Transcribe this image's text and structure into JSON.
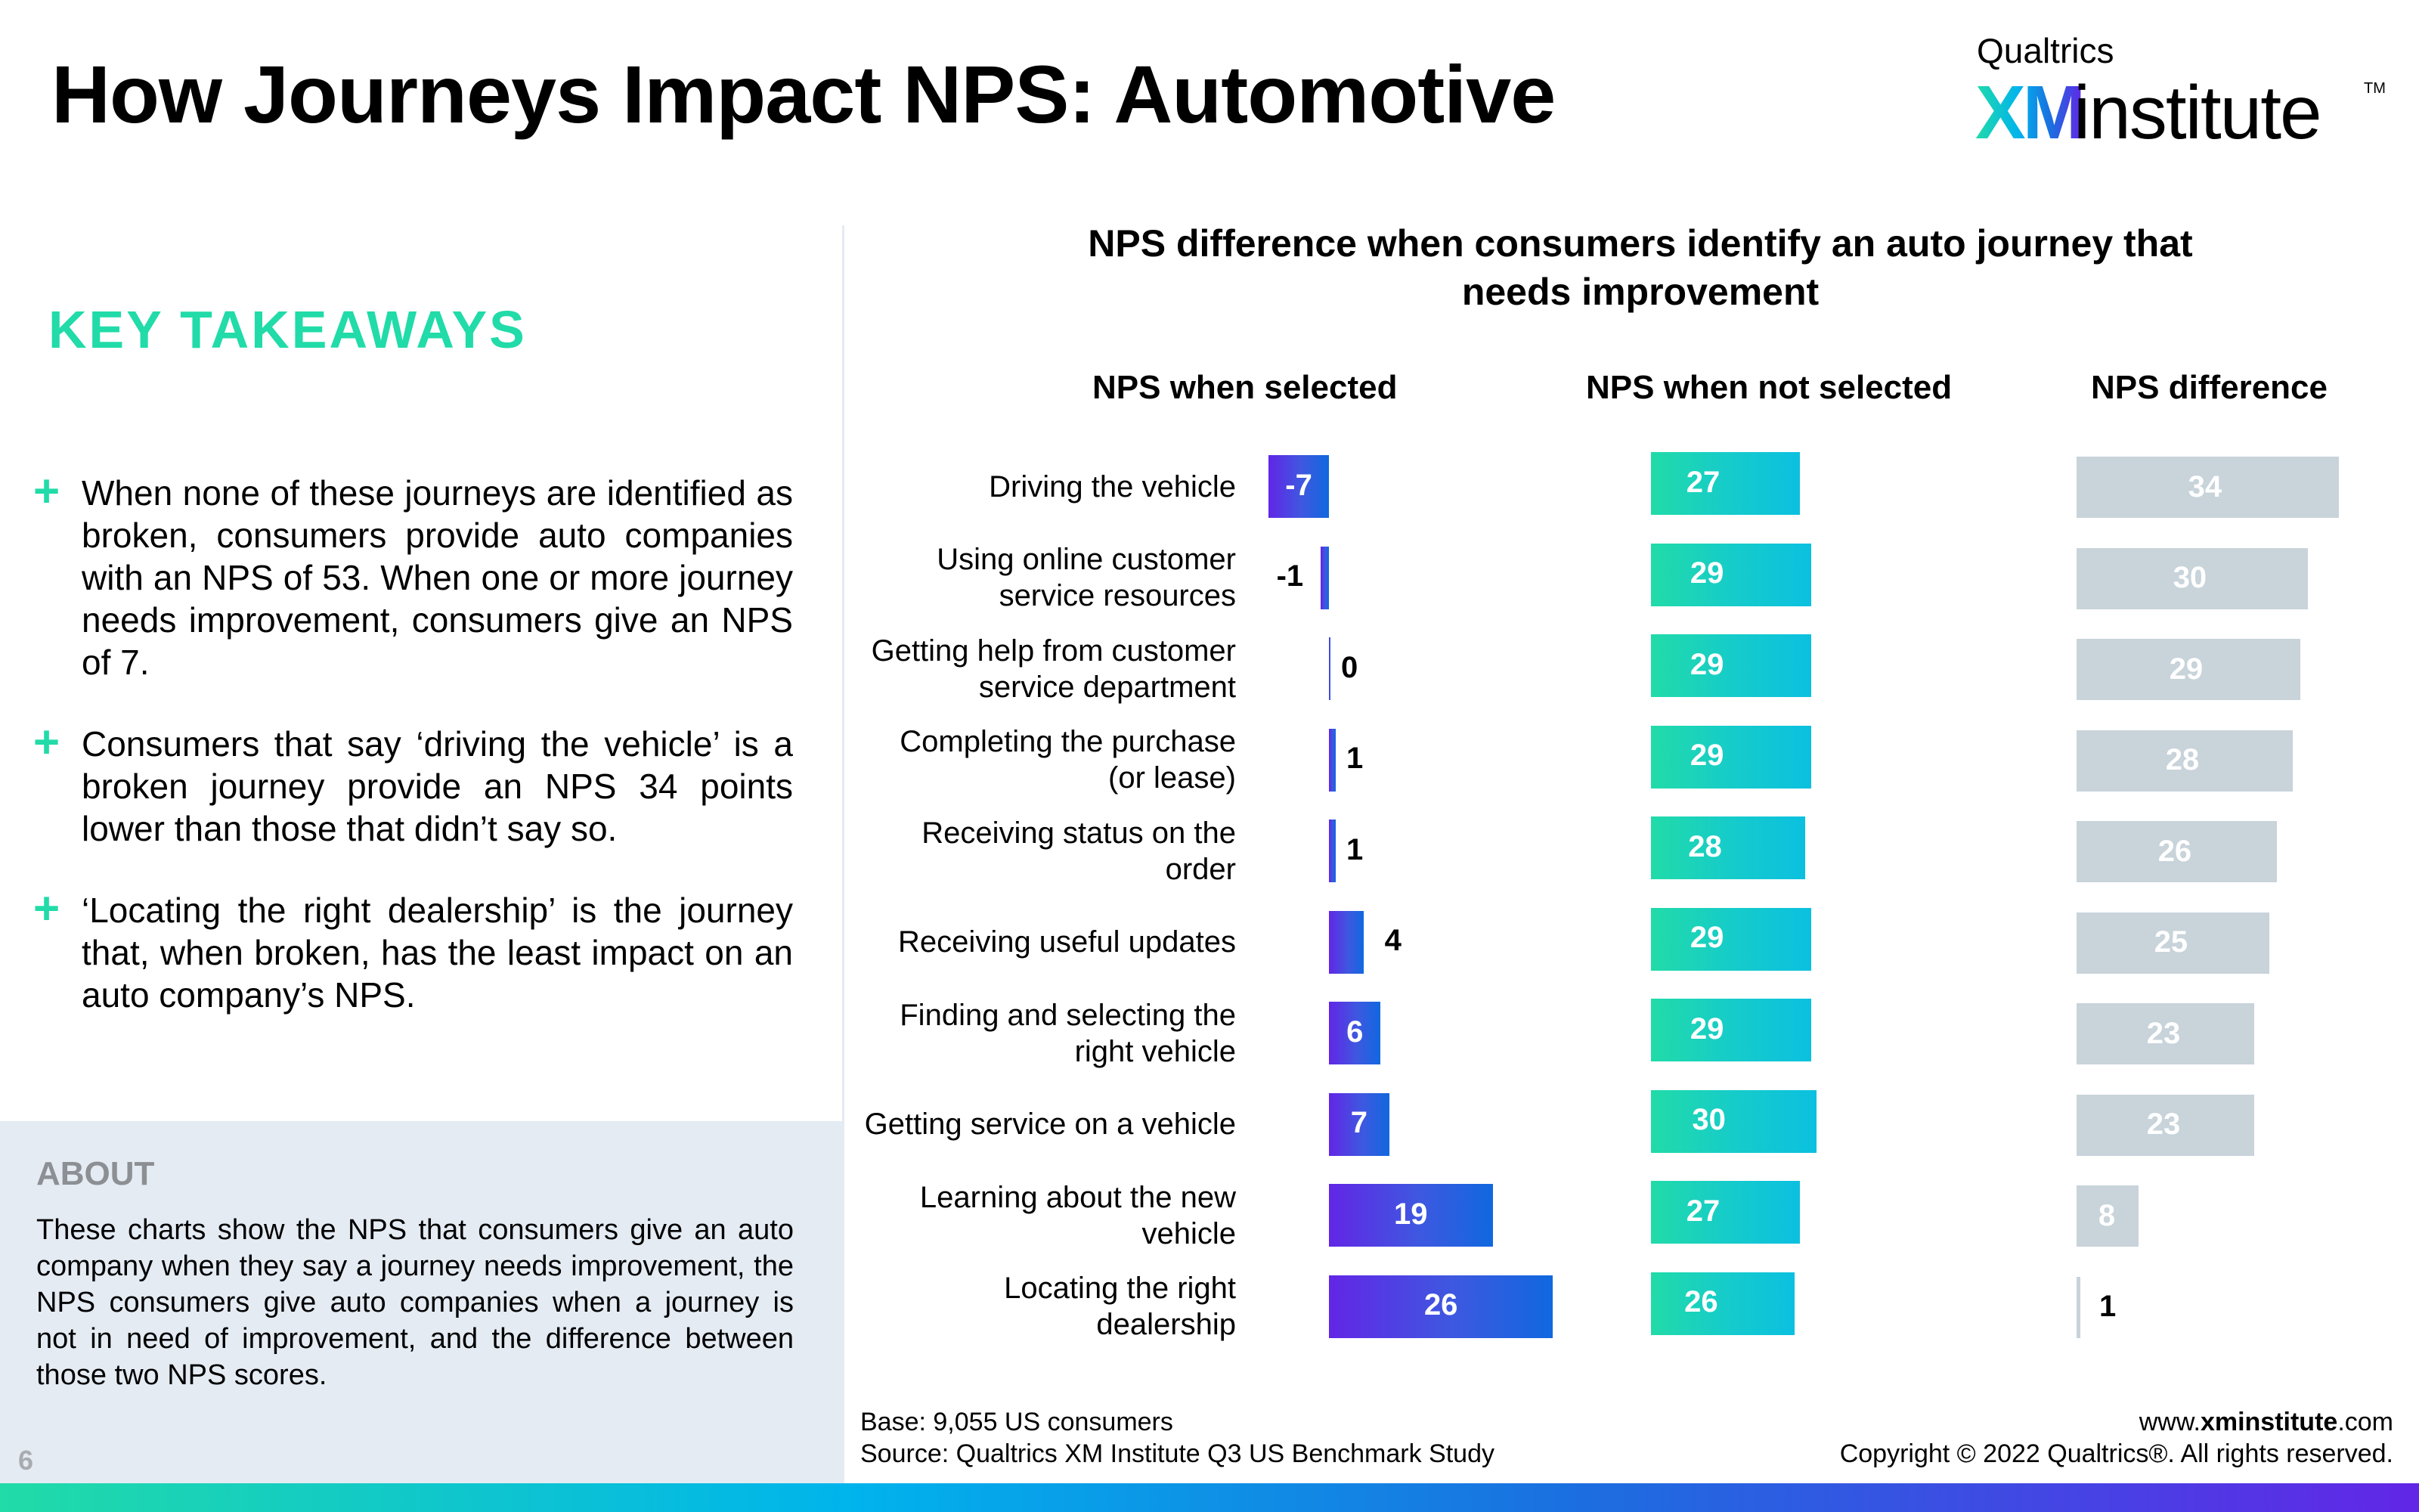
{
  "header": {
    "title": "How Journeys Impact NPS: Automotive",
    "logo": {
      "top": "Qualtrics",
      "xm": "XM",
      "word": "institute",
      "tm": "TM"
    }
  },
  "takeaways": {
    "title": "KEY TAKEAWAYS",
    "bullet_icon": "plus-icon",
    "items": [
      "When none of these journeys are identified as broken, consumers provide auto companies with an NPS of 53. When one or more journey needs improvement, consumers give an NPS of 7.",
      "Consumers that say ‘driving the vehicle’ is a broken journey provide an NPS 34 points lower than those that didn’t say so.",
      "‘Locating the right dealership’ is the journey that, when broken, has the least impact on an auto company’s NPS."
    ]
  },
  "about": {
    "title": "ABOUT",
    "text": "These charts show the NPS that consumers give an auto company when they say a journey needs improvement, the NPS consumers give auto companies when a journey is not in need of improvement, and the difference between those two NPS scores."
  },
  "page_number": "6",
  "footer": {
    "base": "Base: 9,055 US consumers",
    "source": "Source: Qualtrics XM Institute Q3 US Benchmark Study",
    "url_prefix": "www.",
    "url_bold": "xminstitute",
    "url_suffix": ".com",
    "copyright": "Copyright © 2022 Qualtrics®. All rights reserved."
  },
  "colors": {
    "accent_green": "#21dba8",
    "selected_start": "#6226e6",
    "selected_end": "#1068df",
    "not_selected_start": "#21dba8",
    "not_selected_end": "#0bc0e0",
    "difference": "#c8d3da",
    "about_bg": "#e4ebf3"
  },
  "chart_data": {
    "type": "bar",
    "orientation": "horizontal",
    "title": "NPS difference when consumers identify an auto journey that needs improvement",
    "categories": [
      "Driving the vehicle",
      "Using online customer service resources",
      "Getting help from customer service department",
      "Completing the purchase (or lease)",
      "Receiving status on the order",
      "Receiving useful updates",
      "Finding and selecting the right vehicle",
      "Getting service on a vehicle",
      "Learning about the new vehicle",
      "Locating the right dealership"
    ],
    "category_lines": [
      [
        "Driving the vehicle"
      ],
      [
        "Using online customer",
        "service resources"
      ],
      [
        "Getting help from customer",
        "service department"
      ],
      [
        "Completing the purchase",
        "(or lease)"
      ],
      [
        "Receiving status on the",
        "order"
      ],
      [
        "Receiving useful updates"
      ],
      [
        "Finding and selecting the",
        "right vehicle"
      ],
      [
        "Getting service on a vehicle"
      ],
      [
        "Learning about the new",
        "vehicle"
      ],
      [
        "Locating the right",
        "dealership"
      ]
    ],
    "series": [
      {
        "name": "NPS when selected",
        "values": [
          -7,
          -1,
          0,
          1,
          1,
          4,
          6,
          7,
          19,
          26
        ]
      },
      {
        "name": "NPS when not selected",
        "values": [
          27,
          29,
          29,
          29,
          28,
          29,
          29,
          30,
          27,
          26
        ]
      },
      {
        "name": "NPS difference",
        "values": [
          34,
          30,
          29,
          28,
          26,
          25,
          23,
          23,
          8,
          1
        ]
      }
    ],
    "xlabel": "",
    "ylabel": "",
    "grid": false,
    "legend": "none"
  }
}
